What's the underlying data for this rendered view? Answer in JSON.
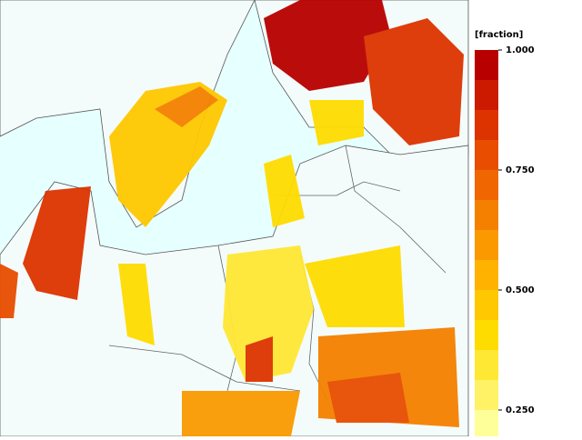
{
  "legend": {
    "title": "[fraction]",
    "lim": [
      0.1875,
      1
    ],
    "colors": [
      "#b80000",
      "#cc1a00",
      "#dd3300",
      "#e84d00",
      "#f06600",
      "#f58000",
      "#fa9a00",
      "#ffb300",
      "#ffc800",
      "#ffdc00",
      "#ffe833",
      "#fff266",
      "#ffff99"
    ],
    "ticks": [
      {
        "value": 1,
        "label": "1.000"
      },
      {
        "value": 0.75,
        "label": "0.750"
      },
      {
        "value": 0.5,
        "label": "0.500"
      },
      {
        "value": 0.25,
        "label": "0.250"
      }
    ]
  }
}
